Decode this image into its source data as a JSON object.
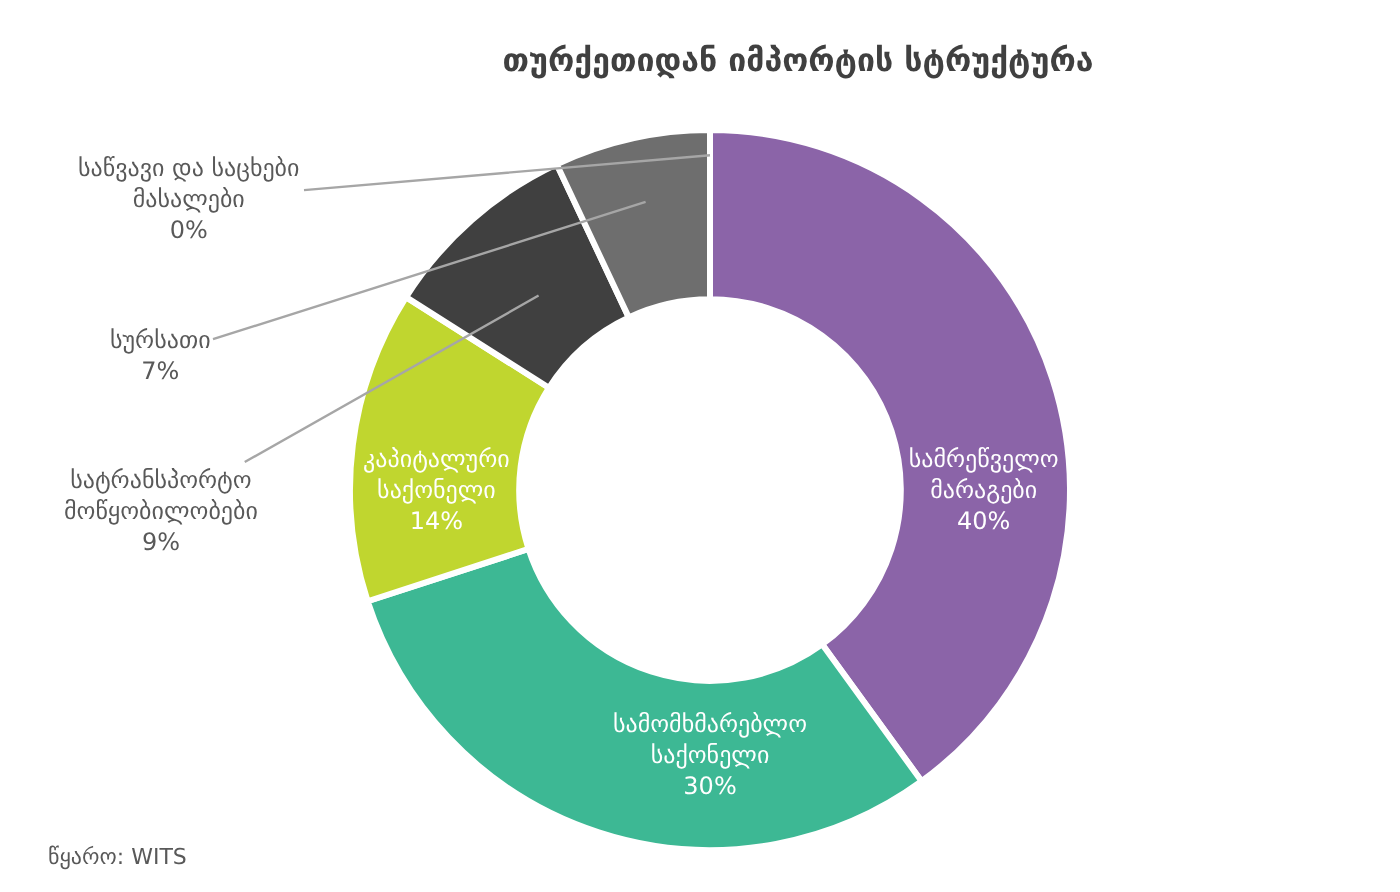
{
  "chart_data": {
    "type": "donut",
    "title": "თურქეთიდან იმპორტის სტრუქტურა",
    "categories": [
      "სამრეწველო მარაგები",
      "სამომხმარებლო საქონელი",
      "კაპიტალური საქონელი",
      "სატრანსპორტო მოწყობილობები",
      "სურსათი",
      "საწვავი და საცხები მასალები"
    ],
    "values": [
      40,
      30,
      14,
      9,
      7,
      0
    ],
    "colors": [
      "#8b64a8",
      "#3db894",
      "#c0d62f",
      "#404040",
      "#6e6e6e",
      "#8b64a8"
    ],
    "value_labels": [
      "40%",
      "30%",
      "14%",
      "9%",
      "7%",
      "0%"
    ],
    "annotations": [
      "წყარო: WITS"
    ]
  }
}
